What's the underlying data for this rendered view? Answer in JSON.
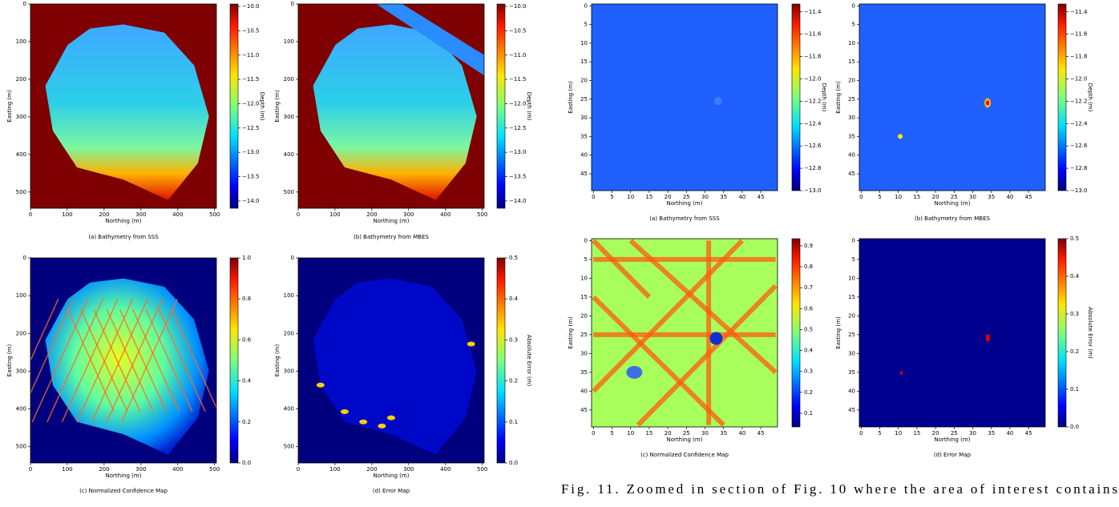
{
  "chart_data": [
    {
      "type": "heatmap",
      "caption": "(a) Bathymetry from SSS",
      "xlabel": "Northing (m)",
      "ylabel": "Easting (m)",
      "xlim": [
        0,
        505
      ],
      "ylim": [
        543,
        0
      ],
      "xticks": [
        0,
        100,
        200,
        300,
        400,
        500
      ],
      "yticks": [
        0,
        100,
        200,
        300,
        400,
        500
      ],
      "colormap": "jet",
      "colorbar": {
        "label": "Depth (m)",
        "lim": [
          -14.15,
          -9.95
        ],
        "ticks": [
          {
            "value": -10.0,
            "label": "−10.0"
          },
          {
            "value": -10.5,
            "label": "−10.5"
          },
          {
            "value": -11.0,
            "label": "−11.0"
          },
          {
            "value": -11.5,
            "label": "−11.5"
          },
          {
            "value": -12.0,
            "label": "−12.0"
          },
          {
            "value": -12.5,
            "label": "−12.5"
          },
          {
            "value": -13.0,
            "label": "−13.0"
          },
          {
            "value": -13.5,
            "label": "−13.5"
          },
          {
            "value": -14.0,
            "label": "−14.0"
          }
        ]
      }
    },
    {
      "type": "heatmap",
      "caption": "(b) Bathymetry from MBES",
      "xlabel": "Northing (m)",
      "ylabel": "Easting (m)",
      "xlim": [
        0,
        505
      ],
      "ylim": [
        543,
        0
      ],
      "xticks": [
        0,
        100,
        200,
        300,
        400,
        500
      ],
      "yticks": [
        0,
        100,
        200,
        300,
        400,
        500
      ],
      "colormap": "jet",
      "colorbar": {
        "label": "Depth (m)",
        "lim": [
          -14.15,
          -9.95
        ],
        "ticks": [
          {
            "value": -10.0,
            "label": "−10.0"
          },
          {
            "value": -10.5,
            "label": "−10.5"
          },
          {
            "value": -11.0,
            "label": "−11.0"
          },
          {
            "value": -11.5,
            "label": "−11.5"
          },
          {
            "value": -12.0,
            "label": "−12.0"
          },
          {
            "value": -12.5,
            "label": "−12.5"
          },
          {
            "value": -13.0,
            "label": "−13.0"
          },
          {
            "value": -13.5,
            "label": "−13.5"
          },
          {
            "value": -14.0,
            "label": "−14.0"
          }
        ]
      }
    },
    {
      "type": "heatmap",
      "caption": "(c) Normalized Confidence Map",
      "xlabel": "Northing (m)",
      "ylabel": "Easting (m)",
      "xlim": [
        0,
        505
      ],
      "ylim": [
        543,
        0
      ],
      "xticks": [
        0,
        100,
        200,
        300,
        400,
        500
      ],
      "yticks": [
        0,
        100,
        200,
        300,
        400,
        500
      ],
      "colormap": "jet",
      "colorbar": {
        "lim": [
          0,
          1
        ],
        "ticks": [
          {
            "value": 0,
            "label": "0.0"
          },
          0.2,
          0.4,
          0.6,
          0.8,
          {
            "value": 1,
            "label": "1.0"
          }
        ]
      }
    },
    {
      "type": "heatmap",
      "caption": "(d) Error Map",
      "xlabel": "Northing (m)",
      "ylabel": "Easting (m)",
      "xlim": [
        0,
        505
      ],
      "ylim": [
        543,
        0
      ],
      "xticks": [
        0,
        100,
        200,
        300,
        400,
        500
      ],
      "yticks": [
        0,
        100,
        200,
        300,
        400,
        500
      ],
      "colormap": "jet",
      "colorbar": {
        "label": "Absolute Error (m)",
        "lim": [
          0,
          0.5
        ],
        "ticks": [
          {
            "value": 0,
            "label": "0.0"
          },
          0.1,
          0.2,
          0.3,
          0.4,
          0.5
        ]
      }
    },
    {
      "type": "heatmap",
      "caption": "(a) Bathymetry from SSS",
      "xlabel": "Northing (m)",
      "ylabel": "Easting (m)",
      "xlim": [
        -0.5,
        49.5
      ],
      "ylim": [
        49.5,
        -0.5
      ],
      "xticks": [
        0,
        5,
        10,
        15,
        20,
        25,
        30,
        35,
        40,
        45
      ],
      "yticks": [
        0,
        5,
        10,
        15,
        20,
        25,
        30,
        35,
        40,
        45
      ],
      "colormap": "jet",
      "colorbar": {
        "label": "Depth (m)",
        "lim": [
          -13.0,
          -11.33
        ],
        "ticks": [
          {
            "value": -11.4,
            "label": "−11.4"
          },
          {
            "value": -11.6,
            "label": "−11.6"
          },
          {
            "value": -11.8,
            "label": "−11.8"
          },
          {
            "value": -12.0,
            "label": "−12.0"
          },
          {
            "value": -12.2,
            "label": "−12.2"
          },
          {
            "value": -12.4,
            "label": "−12.4"
          },
          {
            "value": -12.6,
            "label": "−12.6"
          },
          {
            "value": -12.8,
            "label": "−12.8"
          },
          {
            "value": -13.0,
            "label": "−13.0"
          }
        ]
      }
    },
    {
      "type": "heatmap",
      "caption": "(b) Bathymetry from MBES",
      "xlabel": "Northing (m)",
      "ylabel": "Easting (m)",
      "xlim": [
        -0.5,
        49.5
      ],
      "ylim": [
        49.5,
        -0.5
      ],
      "xticks": [
        0,
        5,
        10,
        15,
        20,
        25,
        30,
        35,
        40,
        45
      ],
      "yticks": [
        0,
        5,
        10,
        15,
        20,
        25,
        30,
        35,
        40,
        45
      ],
      "colormap": "jet",
      "colorbar": {
        "label": "Depth (m)",
        "lim": [
          -13.0,
          -11.33
        ],
        "ticks": [
          {
            "value": -11.4,
            "label": "−11.4"
          },
          {
            "value": -11.6,
            "label": "−11.6"
          },
          {
            "value": -11.8,
            "label": "−11.8"
          },
          {
            "value": -12.0,
            "label": "−12.0"
          },
          {
            "value": -12.2,
            "label": "−12.2"
          },
          {
            "value": -12.4,
            "label": "−12.4"
          },
          {
            "value": -12.6,
            "label": "−12.6"
          },
          {
            "value": -12.8,
            "label": "−12.8"
          },
          {
            "value": -13.0,
            "label": "−13.0"
          }
        ]
      }
    },
    {
      "type": "heatmap",
      "caption": "(c) Normalized Confidence Map",
      "xlabel": "Northing (m)",
      "ylabel": "Easting (m)",
      "xlim": [
        -0.5,
        49.5
      ],
      "ylim": [
        49.5,
        -0.5
      ],
      "xticks": [
        0,
        5,
        10,
        15,
        20,
        25,
        30,
        35,
        40,
        45
      ],
      "yticks": [
        0,
        5,
        10,
        15,
        20,
        25,
        30,
        35,
        40,
        45
      ],
      "colormap": "jet",
      "colorbar": {
        "lim": [
          0.035,
          0.934
        ],
        "ticks": [
          0.1,
          0.2,
          0.3,
          0.4,
          0.5,
          0.6,
          0.7,
          0.8,
          0.9
        ]
      }
    },
    {
      "type": "heatmap",
      "caption": "(d) Error Map",
      "xlabel": "Northing (m)",
      "ylabel": "Easting (m)",
      "xlim": [
        -0.5,
        49.5
      ],
      "ylim": [
        49.5,
        -0.5
      ],
      "xticks": [
        0,
        5,
        10,
        15,
        20,
        25,
        30,
        35,
        40,
        45
      ],
      "yticks": [
        0,
        5,
        10,
        15,
        20,
        25,
        30,
        35,
        40,
        45
      ],
      "colormap": "jet",
      "colorbar": {
        "label": "Absolute Error (m)",
        "lim": [
          0,
          0.5
        ],
        "ticks": [
          {
            "value": 0,
            "label": "0.0"
          },
          0.1,
          0.2,
          0.3,
          0.4,
          0.5
        ]
      }
    }
  ],
  "caption": "Fig. 11.  Zoomed in section of Fig. 10 where the area of interest contains"
}
